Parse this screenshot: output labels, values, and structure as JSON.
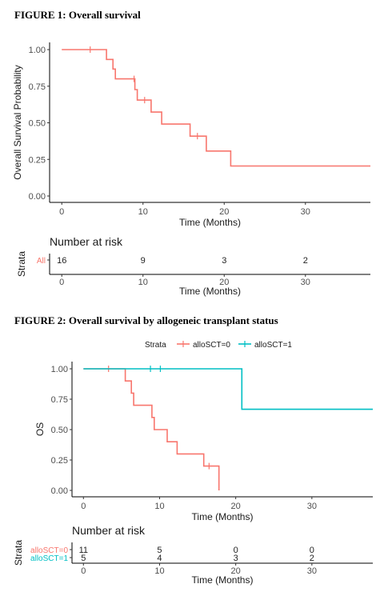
{
  "figure1": {
    "title": "FIGURE 1: Overall survival",
    "chart_data": {
      "type": "line",
      "step": true,
      "xlabel": "Time (Months)",
      "ylabel": "Overall Survival Probability",
      "xlim": [
        -1.5,
        38
      ],
      "ylim": [
        0,
        1.0
      ],
      "x_ticks": [
        0,
        10,
        20,
        30
      ],
      "y_ticks": [
        "0.00",
        "0.25",
        "0.50",
        "0.75",
        "1.00"
      ],
      "grid": false,
      "series": [
        {
          "color": "#F8766D",
          "steps": [
            [
              0,
              1.0
            ],
            [
              5.5,
              1.0
            ],
            [
              5.5,
              0.933
            ],
            [
              6.3,
              0.933
            ],
            [
              6.3,
              0.867
            ],
            [
              6.6,
              0.867
            ],
            [
              6.6,
              0.8
            ],
            [
              9.0,
              0.8
            ],
            [
              9.0,
              0.727
            ],
            [
              9.3,
              0.727
            ],
            [
              9.3,
              0.655
            ],
            [
              11.0,
              0.655
            ],
            [
              11.0,
              0.573
            ],
            [
              12.3,
              0.573
            ],
            [
              12.3,
              0.491
            ],
            [
              15.8,
              0.491
            ],
            [
              15.8,
              0.409
            ],
            [
              17.8,
              0.409
            ],
            [
              17.8,
              0.307
            ],
            [
              20.8,
              0.307
            ],
            [
              20.8,
              0.205
            ],
            [
              38,
              0.205
            ]
          ],
          "censors": [
            [
              3.5,
              1.0
            ],
            [
              8.9,
              0.8
            ],
            [
              10.2,
              0.655
            ],
            [
              16.7,
              0.409
            ]
          ]
        }
      ]
    },
    "risk_table": {
      "title": "Number at risk",
      "strata_label": "Strata",
      "xlabel": "Time (Months)",
      "x_ticks": [
        0,
        10,
        20,
        30
      ],
      "rows": [
        {
          "name": "All",
          "color": "#F8766D",
          "counts": [
            "16",
            "9",
            "3",
            "2"
          ]
        }
      ]
    }
  },
  "figure2": {
    "title": "FIGURE 2: Overall survival by allogeneic transplant status",
    "legend": {
      "title": "Strata",
      "placement": "top",
      "items": [
        "alloSCT=0",
        "alloSCT=1"
      ]
    },
    "chart_data": {
      "type": "line",
      "step": true,
      "xlabel": "Time (Months)",
      "ylabel": "OS",
      "xlim": [
        -1.5,
        38
      ],
      "ylim": [
        0,
        1.0
      ],
      "x_ticks": [
        0,
        10,
        20,
        30
      ],
      "y_ticks": [
        "0.00",
        "0.25",
        "0.50",
        "0.75",
        "1.00"
      ],
      "grid": false,
      "series": [
        {
          "name": "alloSCT=0",
          "color": "#F8766D",
          "steps": [
            [
              0,
              1.0
            ],
            [
              5.5,
              1.0
            ],
            [
              5.5,
              0.9
            ],
            [
              6.3,
              0.9
            ],
            [
              6.3,
              0.8
            ],
            [
              6.6,
              0.8
            ],
            [
              6.6,
              0.7
            ],
            [
              9.0,
              0.7
            ],
            [
              9.0,
              0.6
            ],
            [
              9.3,
              0.6
            ],
            [
              9.3,
              0.5
            ],
            [
              11.0,
              0.5
            ],
            [
              11.0,
              0.4
            ],
            [
              12.3,
              0.4
            ],
            [
              12.3,
              0.3
            ],
            [
              15.8,
              0.3
            ],
            [
              15.8,
              0.2
            ],
            [
              17.8,
              0.2
            ],
            [
              17.8,
              0.0
            ]
          ],
          "censors": [
            [
              3.3,
              1.0
            ],
            [
              16.5,
              0.2
            ]
          ]
        },
        {
          "name": "alloSCT=1",
          "color": "#00BFC4",
          "steps": [
            [
              0,
              1.0
            ],
            [
              20.8,
              1.0
            ],
            [
              20.8,
              0.667
            ],
            [
              38,
              0.667
            ]
          ],
          "censors": [
            [
              8.8,
              1.0
            ],
            [
              10.1,
              1.0
            ]
          ]
        }
      ]
    },
    "risk_table": {
      "title": "Number at risk",
      "strata_label": "Strata",
      "xlabel": "Time (Months)",
      "x_ticks": [
        0,
        10,
        20,
        30
      ],
      "rows": [
        {
          "name": "alloSCT=0",
          "color": "#F8766D",
          "counts": [
            "11",
            "5",
            "0",
            "0"
          ]
        },
        {
          "name": "alloSCT=1",
          "color": "#00BFC4",
          "counts": [
            "5",
            "4",
            "3",
            "2"
          ]
        }
      ]
    }
  }
}
